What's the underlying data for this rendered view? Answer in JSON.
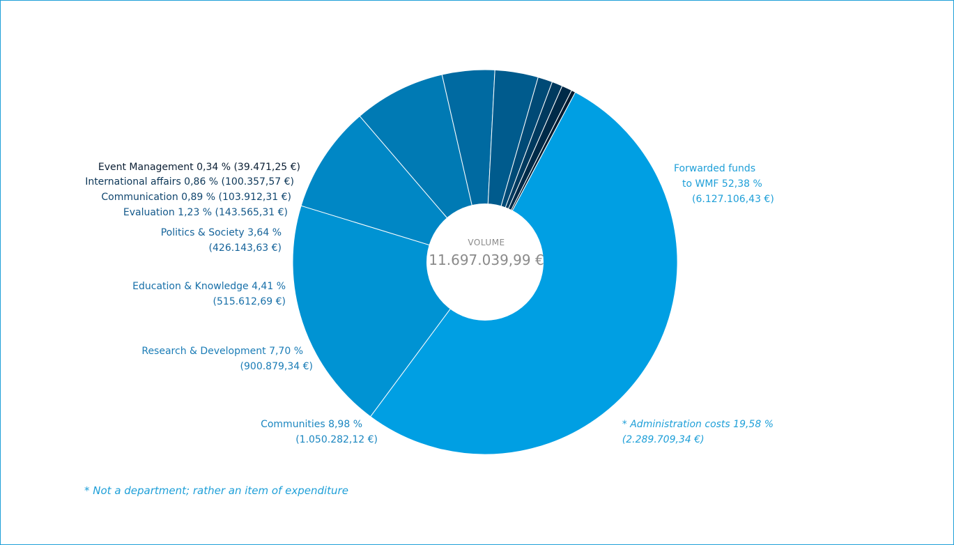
{
  "chart_data": {
    "type": "pie",
    "center_label": "VOLUME",
    "center_value": "11.697.039,99 €",
    "footnote": "* Not a department; rather an item of expenditure",
    "slices": [
      {
        "id": "forwarded",
        "value": 52.38,
        "color": "#009fe3",
        "text_color": "#1e9fd8",
        "lines": [
          "Forwarded funds",
          "to WMF 52,38 %",
          "(6.127.106,43 €)"
        ]
      },
      {
        "id": "admin",
        "value": 19.58,
        "color": "#0093d3",
        "text_color": "#1e9fd8",
        "italic": true,
        "lines": [
          "* Administration costs 19,58 %",
          "(2.289.709,34 €)"
        ]
      },
      {
        "id": "communities",
        "value": 8.98,
        "color": "#0087c5",
        "text_color": "#1a86c0",
        "lines": [
          "Communities 8,98 %",
          "(1.050.282,12 €)"
        ]
      },
      {
        "id": "research",
        "value": 7.7,
        "color": "#007ab4",
        "text_color": "#1a7cb6",
        "lines": [
          "Research & Development 7,70 %",
          "(900.879,34 €)"
        ]
      },
      {
        "id": "education",
        "value": 4.41,
        "color": "#006aa1",
        "text_color": "#176fa8",
        "lines": [
          "Education & Knowledge 4,41 %",
          "(515.612,69 €)"
        ]
      },
      {
        "id": "politics",
        "value": 3.64,
        "color": "#005b8d",
        "text_color": "#15639a",
        "lines": [
          "Politics & Society 3,64 %",
          "(426.143,63 €)"
        ]
      },
      {
        "id": "evaluation",
        "value": 1.23,
        "color": "#004a76",
        "text_color": "#13588a",
        "lines": [
          "Evaluation 1,23 % (143.565,31 €)"
        ]
      },
      {
        "id": "communication",
        "value": 0.89,
        "color": "#003a5f",
        "text_color": "#10466f",
        "lines": [
          "Communication 0,89 % (103.912,31 €)"
        ]
      },
      {
        "id": "international",
        "value": 0.86,
        "color": "#002a48",
        "text_color": "#0c3657",
        "lines": [
          "International affairs 0,86 % (100.357,57 €)"
        ]
      },
      {
        "id": "event",
        "value": 0.34,
        "color": "#001a30",
        "text_color": "#0a1e33",
        "lines": [
          "Event Management 0,34 % (39.471,25 €)"
        ]
      }
    ]
  }
}
